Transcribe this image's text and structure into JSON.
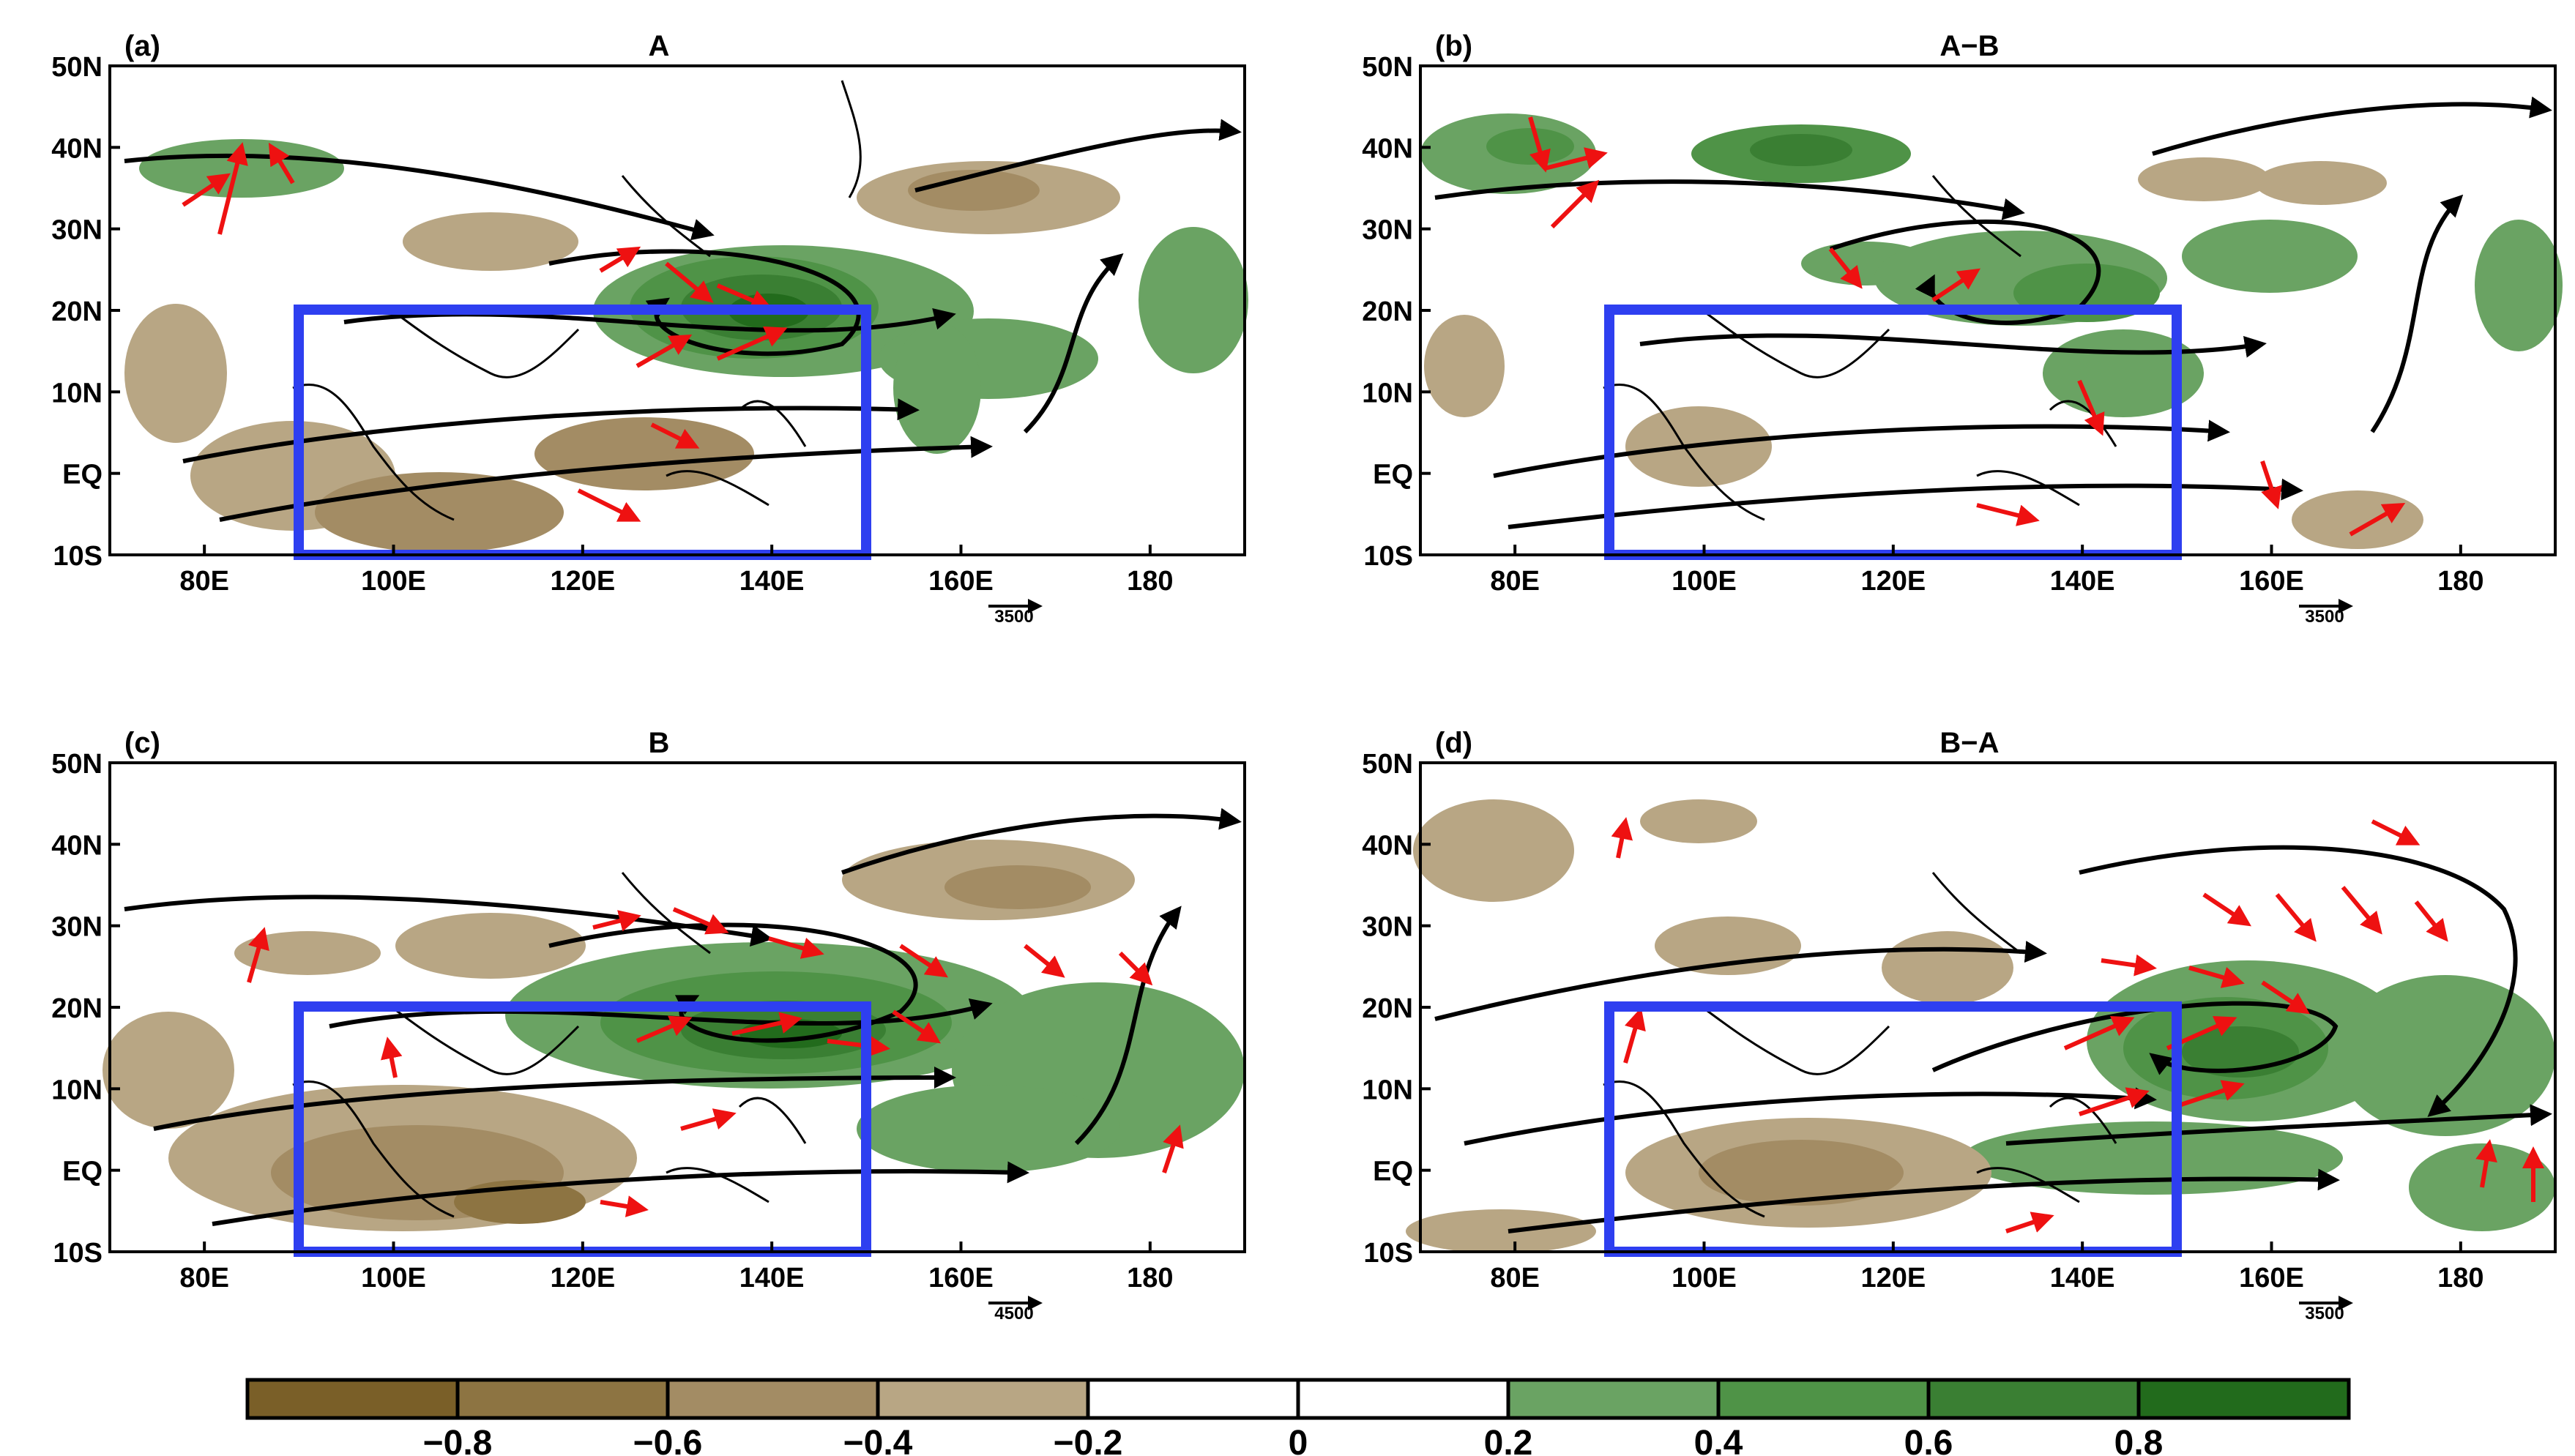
{
  "panels": [
    {
      "id": "a",
      "letter": "(a)",
      "title": "A",
      "ref_vector": "3500"
    },
    {
      "id": "b",
      "letter": "(b)",
      "title": "A−B",
      "ref_vector": "3500"
    },
    {
      "id": "c",
      "letter": "(c)",
      "title": "B",
      "ref_vector": "4500"
    },
    {
      "id": "d",
      "letter": "(d)",
      "title": "B−A",
      "ref_vector": "3500"
    }
  ],
  "lat_ticks": [
    {
      "lat": 50,
      "label": "50N"
    },
    {
      "lat": 40,
      "label": "40N"
    },
    {
      "lat": 30,
      "label": "30N"
    },
    {
      "lat": 20,
      "label": "20N"
    },
    {
      "lat": 10,
      "label": "10N"
    },
    {
      "lat": 0,
      "label": "EQ"
    },
    {
      "lat": -10,
      "label": "10S"
    }
  ],
  "lon_ticks": [
    {
      "lon": 80,
      "label": "80E"
    },
    {
      "lon": 100,
      "label": "100E"
    },
    {
      "lon": 120,
      "label": "120E"
    },
    {
      "lon": 140,
      "label": "140E"
    },
    {
      "lon": 160,
      "label": "160E"
    },
    {
      "lon": 180,
      "label": "180"
    }
  ],
  "extent": {
    "lon_min": 70,
    "lon_max": 190,
    "lat_min": -10,
    "lat_max": 50
  },
  "box_region": {
    "lon_min": 90,
    "lon_max": 150,
    "lat_min": -10,
    "lat_max": 20,
    "color": "#2e3ff0"
  },
  "colorbar": {
    "colors": [
      "#7a5f28",
      "#8d7442",
      "#a38c64",
      "#b8a684",
      "#ffffff",
      "#ffffff",
      "#6aa363",
      "#4f9347",
      "#3a7f33",
      "#226b1c"
    ],
    "labels": [
      "−0.8",
      "−0.6",
      "−0.4",
      "−0.2",
      "0",
      "0.2",
      "0.4",
      "0.6",
      "0.8"
    ]
  },
  "colors": {
    "vector": "#ee1111",
    "streamline": "#000000",
    "coast": "#000000"
  }
}
